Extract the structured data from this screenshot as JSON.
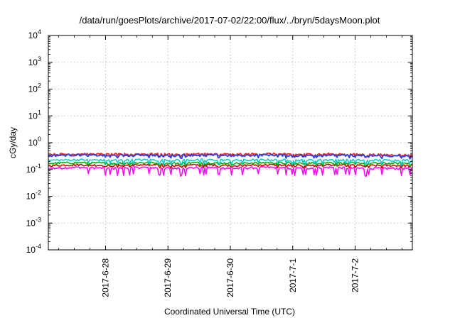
{
  "chart_data": {
    "type": "line",
    "title": "/data/run/goesPlots/archive/2017-07-02/22:00/flux/../bryn/5daysMoon.plot",
    "xlabel": "Coordinated Universal Time (UTC)",
    "ylabel": "cGy/day",
    "y_scale": "log",
    "ylim": [
      0.0001,
      10000
    ],
    "xlim": [
      "2017-06-27T02:00",
      "2017-07-02T22:00"
    ],
    "grid": true,
    "x_ticks": [
      {
        "date": "2017-06-28T00:00",
        "label": "2017-6-28"
      },
      {
        "date": "2017-06-29T00:00",
        "label": "2017-6-29"
      },
      {
        "date": "2017-06-30T00:00",
        "label": "2017-6-30"
      },
      {
        "date": "2017-07-01T00:00",
        "label": "2017-7-1"
      },
      {
        "date": "2017-07-02T00:00",
        "label": "2017-7-2"
      }
    ],
    "y_ticks": [
      {
        "value": 0.0001,
        "base": "10",
        "exp": "-4"
      },
      {
        "value": 0.001,
        "base": "10",
        "exp": "-3"
      },
      {
        "value": 0.01,
        "base": "10",
        "exp": "-2"
      },
      {
        "value": 0.1,
        "base": "10",
        "exp": "-1"
      },
      {
        "value": 1,
        "base": "10",
        "exp": "0"
      },
      {
        "value": 10,
        "base": "10",
        "exp": "1"
      },
      {
        "value": 100,
        "base": "10",
        "exp": "2"
      },
      {
        "value": 1000,
        "base": "10",
        "exp": "3"
      },
      {
        "value": 10000,
        "base": "10",
        "exp": "4"
      }
    ],
    "series": [
      {
        "color": "#ff00ff",
        "x": [
          "2017-06-27T02:00",
          "2017-06-27T14:00",
          "2017-06-28T02:00",
          "2017-06-28T14:00",
          "2017-06-29T02:00",
          "2017-06-29T14:00",
          "2017-06-30T02:00",
          "2017-06-30T14:00",
          "2017-07-01T02:00",
          "2017-07-01T14:00",
          "2017-07-02T02:00",
          "2017-07-02T22:00"
        ],
        "values": [
          0.11,
          0.12,
          0.11,
          0.12,
          0.11,
          0.12,
          0.11,
          0.12,
          0.11,
          0.12,
          0.11,
          0.11
        ]
      },
      {
        "color": "#cc0000",
        "x": [
          "2017-06-27T02:00",
          "2017-06-27T14:00",
          "2017-06-28T02:00",
          "2017-06-28T14:00",
          "2017-06-29T02:00",
          "2017-06-29T14:00",
          "2017-06-30T02:00",
          "2017-06-30T14:00",
          "2017-07-01T02:00",
          "2017-07-01T14:00",
          "2017-07-02T02:00",
          "2017-07-02T22:00"
        ],
        "values": [
          0.14,
          0.15,
          0.14,
          0.15,
          0.14,
          0.15,
          0.14,
          0.15,
          0.14,
          0.15,
          0.14,
          0.14
        ]
      },
      {
        "color": "#00b000",
        "x": [
          "2017-06-27T02:00",
          "2017-06-27T14:00",
          "2017-06-28T02:00",
          "2017-06-28T14:00",
          "2017-06-29T02:00",
          "2017-06-29T14:00",
          "2017-06-30T02:00",
          "2017-06-30T14:00",
          "2017-07-01T02:00",
          "2017-07-01T14:00",
          "2017-07-02T02:00",
          "2017-07-02T22:00"
        ],
        "values": [
          0.17,
          0.18,
          0.17,
          0.18,
          0.17,
          0.18,
          0.17,
          0.18,
          0.17,
          0.18,
          0.17,
          0.17
        ]
      },
      {
        "color": "#00cccc",
        "x": [
          "2017-06-27T02:00",
          "2017-06-27T14:00",
          "2017-06-28T02:00",
          "2017-06-28T14:00",
          "2017-06-29T02:00",
          "2017-06-29T14:00",
          "2017-06-30T02:00",
          "2017-06-30T14:00",
          "2017-07-01T02:00",
          "2017-07-01T14:00",
          "2017-07-02T02:00",
          "2017-07-02T22:00"
        ],
        "values": [
          0.22,
          0.23,
          0.22,
          0.23,
          0.22,
          0.23,
          0.22,
          0.23,
          0.22,
          0.23,
          0.22,
          0.22
        ]
      },
      {
        "color": "#ee2222",
        "x": [
          "2017-06-27T02:00",
          "2017-06-27T14:00",
          "2017-06-28T02:00",
          "2017-06-28T14:00",
          "2017-06-29T02:00",
          "2017-06-29T14:00",
          "2017-06-30T02:00",
          "2017-06-30T14:00",
          "2017-07-01T02:00",
          "2017-07-01T14:00",
          "2017-07-02T02:00",
          "2017-07-02T22:00"
        ],
        "values": [
          0.36,
          0.38,
          0.36,
          0.38,
          0.36,
          0.38,
          0.36,
          0.38,
          0.36,
          0.38,
          0.36,
          0.34
        ]
      },
      {
        "color": "#2244ee",
        "x": [
          "2017-06-27T02:00",
          "2017-06-27T14:00",
          "2017-06-28T02:00",
          "2017-06-28T14:00",
          "2017-06-29T02:00",
          "2017-06-29T14:00",
          "2017-06-30T02:00",
          "2017-06-30T14:00",
          "2017-07-01T02:00",
          "2017-07-01T14:00",
          "2017-07-02T02:00",
          "2017-07-02T22:00"
        ],
        "values": [
          0.33,
          0.35,
          0.33,
          0.35,
          0.33,
          0.35,
          0.33,
          0.35,
          0.33,
          0.35,
          0.33,
          0.31
        ]
      }
    ]
  }
}
